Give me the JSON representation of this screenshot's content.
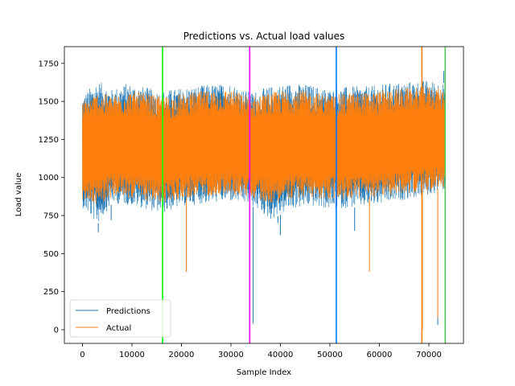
{
  "chart_data": {
    "type": "line",
    "title": "Predictions vs. Actual load values",
    "xlabel": "Sample Index",
    "ylabel": "Load value",
    "xlim": [
      -3650,
      77000
    ],
    "ylim": [
      -90,
      1860
    ],
    "xticks": [
      0,
      10000,
      20000,
      30000,
      40000,
      50000,
      60000,
      70000
    ],
    "xtick_labels": [
      "0",
      "10000",
      "20000",
      "30000",
      "40000",
      "50000",
      "60000",
      "70000"
    ],
    "yticks": [
      0,
      250,
      500,
      750,
      1000,
      1250,
      1500,
      1750
    ],
    "ytick_labels": [
      "0",
      "250",
      "500",
      "750",
      "1000",
      "1250",
      "1500",
      "1750"
    ],
    "grid": false,
    "legend": "lower-left",
    "x_range": [
      0,
      73300
    ],
    "series": [
      {
        "name": "Predictions",
        "color": "#1f77b4",
        "band_upper": [
          [
            0,
            1540
          ],
          [
            3000,
            1640
          ],
          [
            6000,
            1580
          ],
          [
            9000,
            1620
          ],
          [
            12000,
            1600
          ],
          [
            16000,
            1570
          ],
          [
            20000,
            1590
          ],
          [
            25000,
            1610
          ],
          [
            30000,
            1620
          ],
          [
            34000,
            1560
          ],
          [
            38000,
            1600
          ],
          [
            42000,
            1620
          ],
          [
            46000,
            1610
          ],
          [
            50000,
            1580
          ],
          [
            54000,
            1600
          ],
          [
            58000,
            1600
          ],
          [
            62000,
            1620
          ],
          [
            66000,
            1630
          ],
          [
            70000,
            1640
          ],
          [
            73300,
            1620
          ]
        ],
        "band_lower": [
          [
            0,
            800
          ],
          [
            3000,
            690
          ],
          [
            6000,
            830
          ],
          [
            9000,
            820
          ],
          [
            12000,
            800
          ],
          [
            16000,
            760
          ],
          [
            20000,
            810
          ],
          [
            25000,
            830
          ],
          [
            30000,
            840
          ],
          [
            34000,
            820
          ],
          [
            38000,
            720
          ],
          [
            42000,
            790
          ],
          [
            46000,
            810
          ],
          [
            50000,
            790
          ],
          [
            54000,
            800
          ],
          [
            58000,
            810
          ],
          [
            62000,
            830
          ],
          [
            66000,
            860
          ],
          [
            70000,
            880
          ],
          [
            73300,
            920
          ]
        ],
        "spikes": [
          [
            3200,
            640
          ],
          [
            5800,
            720
          ],
          [
            21000,
            380
          ],
          [
            34500,
            40
          ],
          [
            39500,
            700
          ],
          [
            40000,
            620
          ],
          [
            55000,
            650
          ],
          [
            71800,
            30
          ],
          [
            73000,
            1700
          ]
        ]
      },
      {
        "name": "Actual",
        "color": "#ff7f0e",
        "band_upper": [
          [
            0,
            1500
          ],
          [
            3000,
            1560
          ],
          [
            6000,
            1540
          ],
          [
            9000,
            1570
          ],
          [
            12000,
            1560
          ],
          [
            16000,
            1530
          ],
          [
            20000,
            1550
          ],
          [
            25000,
            1570
          ],
          [
            30000,
            1580
          ],
          [
            34000,
            1530
          ],
          [
            38000,
            1560
          ],
          [
            42000,
            1580
          ],
          [
            46000,
            1570
          ],
          [
            50000,
            1540
          ],
          [
            54000,
            1560
          ],
          [
            58000,
            1560
          ],
          [
            62000,
            1580
          ],
          [
            66000,
            1590
          ],
          [
            70000,
            1600
          ],
          [
            73300,
            1580
          ]
        ],
        "band_lower": [
          [
            0,
            850
          ],
          [
            3000,
            820
          ],
          [
            6000,
            870
          ],
          [
            9000,
            870
          ],
          [
            12000,
            850
          ],
          [
            16000,
            830
          ],
          [
            20000,
            860
          ],
          [
            25000,
            880
          ],
          [
            30000,
            890
          ],
          [
            34000,
            870
          ],
          [
            38000,
            830
          ],
          [
            42000,
            860
          ],
          [
            46000,
            870
          ],
          [
            50000,
            850
          ],
          [
            54000,
            860
          ],
          [
            58000,
            870
          ],
          [
            62000,
            880
          ],
          [
            66000,
            900
          ],
          [
            70000,
            910
          ],
          [
            73300,
            940
          ]
        ],
        "spikes": [
          [
            21000,
            380
          ],
          [
            58000,
            380
          ],
          [
            68600,
            1870
          ],
          [
            68700,
            0
          ],
          [
            71800,
            80
          ]
        ]
      }
    ],
    "vertical_lines": [
      {
        "x": 16200,
        "color": "#00ff00"
      },
      {
        "x": 33800,
        "color": "#ff00ff"
      },
      {
        "x": 51300,
        "color": "#0077ff"
      },
      {
        "x": 68600,
        "color": "#ff7f0e"
      },
      {
        "x": 73300,
        "color": "#55cc55"
      }
    ]
  }
}
